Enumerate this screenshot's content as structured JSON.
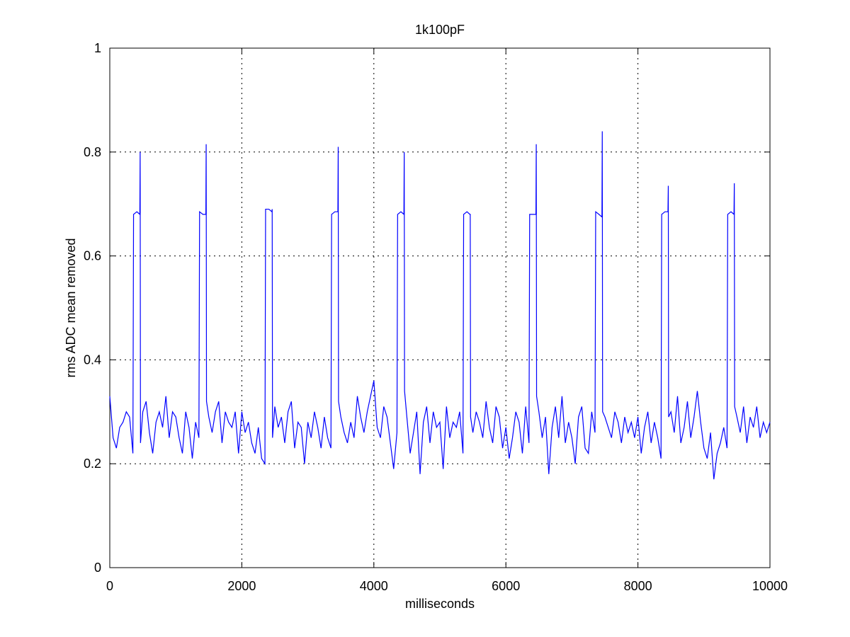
{
  "chart_data": {
    "type": "line",
    "title": "1k100pF",
    "x_label": "milliseconds",
    "y_label": "rms ADC mean removed",
    "xlim": [
      0,
      10000
    ],
    "ylim": [
      0,
      1
    ],
    "xticks": [
      0,
      2000,
      4000,
      6000,
      8000,
      10000
    ],
    "yticks": [
      0,
      0.2,
      0.4,
      0.6,
      0.8,
      1
    ],
    "grid": true,
    "series": [
      {
        "color": "#0000ff",
        "x": [
          0,
          50,
          100,
          150,
          200,
          250,
          300,
          350,
          360,
          410,
          455,
          460,
          465,
          500,
          550,
          600,
          650,
          700,
          750,
          800,
          850,
          900,
          950,
          1000,
          1050,
          1100,
          1150,
          1200,
          1250,
          1300,
          1350,
          1360,
          1410,
          1455,
          1460,
          1465,
          1500,
          1550,
          1600,
          1650,
          1700,
          1750,
          1800,
          1850,
          1900,
          1950,
          2000,
          2050,
          2100,
          2150,
          2200,
          2250,
          2300,
          2350,
          2360,
          2410,
          2455,
          2460,
          2465,
          2500,
          2550,
          2600,
          2650,
          2700,
          2750,
          2800,
          2850,
          2900,
          2950,
          3000,
          3050,
          3100,
          3150,
          3200,
          3250,
          3300,
          3350,
          3360,
          3410,
          3455,
          3460,
          3465,
          3500,
          3550,
          3600,
          3650,
          3700,
          3750,
          3800,
          3850,
          3900,
          3950,
          4000,
          4050,
          4100,
          4150,
          4200,
          4250,
          4300,
          4350,
          4360,
          4410,
          4455,
          4460,
          4465,
          4500,
          4550,
          4600,
          4650,
          4700,
          4750,
          4800,
          4850,
          4900,
          4950,
          5000,
          5050,
          5100,
          5150,
          5200,
          5250,
          5300,
          5350,
          5360,
          5410,
          5455,
          5460,
          5465,
          5500,
          5550,
          5600,
          5650,
          5700,
          5750,
          5800,
          5850,
          5900,
          5950,
          6000,
          6050,
          6100,
          6150,
          6200,
          6250,
          6300,
          6350,
          6360,
          6410,
          6455,
          6460,
          6465,
          6500,
          6550,
          6600,
          6650,
          6700,
          6750,
          6800,
          6850,
          6900,
          6950,
          7000,
          7050,
          7100,
          7150,
          7200,
          7250,
          7300,
          7350,
          7360,
          7410,
          7455,
          7460,
          7465,
          7500,
          7550,
          7600,
          7650,
          7700,
          7750,
          7800,
          7850,
          7900,
          7950,
          8000,
          8050,
          8100,
          8150,
          8200,
          8250,
          8300,
          8350,
          8360,
          8410,
          8455,
          8460,
          8465,
          8500,
          8550,
          8600,
          8650,
          8700,
          8750,
          8800,
          8850,
          8900,
          8950,
          9000,
          9050,
          9100,
          9150,
          9200,
          9250,
          9300,
          9350,
          9360,
          9410,
          9455,
          9460,
          9465,
          9500,
          9550,
          9600,
          9650,
          9700,
          9750,
          9800,
          9850,
          9900,
          9950,
          10000
        ],
        "values": [
          0.33,
          0.25,
          0.23,
          0.27,
          0.28,
          0.3,
          0.29,
          0.22,
          0.68,
          0.685,
          0.68,
          0.8,
          0.24,
          0.3,
          0.32,
          0.26,
          0.22,
          0.28,
          0.3,
          0.27,
          0.33,
          0.25,
          0.3,
          0.29,
          0.25,
          0.22,
          0.3,
          0.27,
          0.21,
          0.28,
          0.25,
          0.685,
          0.68,
          0.68,
          0.815,
          0.32,
          0.29,
          0.26,
          0.3,
          0.32,
          0.24,
          0.3,
          0.28,
          0.27,
          0.3,
          0.22,
          0.3,
          0.26,
          0.28,
          0.24,
          0.22,
          0.27,
          0.21,
          0.2,
          0.69,
          0.69,
          0.685,
          0.69,
          0.25,
          0.31,
          0.27,
          0.29,
          0.24,
          0.3,
          0.32,
          0.23,
          0.28,
          0.27,
          0.2,
          0.28,
          0.25,
          0.3,
          0.27,
          0.23,
          0.29,
          0.25,
          0.23,
          0.68,
          0.685,
          0.685,
          0.81,
          0.32,
          0.29,
          0.26,
          0.24,
          0.28,
          0.25,
          0.33,
          0.29,
          0.26,
          0.3,
          0.33,
          0.36,
          0.27,
          0.25,
          0.31,
          0.29,
          0.24,
          0.19,
          0.26,
          0.68,
          0.685,
          0.68,
          0.8,
          0.34,
          0.29,
          0.22,
          0.26,
          0.3,
          0.18,
          0.28,
          0.31,
          0.24,
          0.3,
          0.27,
          0.28,
          0.19,
          0.31,
          0.25,
          0.28,
          0.27,
          0.3,
          0.22,
          0.68,
          0.685,
          0.68,
          0.68,
          0.29,
          0.26,
          0.3,
          0.28,
          0.25,
          0.32,
          0.27,
          0.24,
          0.31,
          0.29,
          0.23,
          0.27,
          0.21,
          0.25,
          0.3,
          0.28,
          0.22,
          0.31,
          0.24,
          0.68,
          0.68,
          0.68,
          0.815,
          0.33,
          0.3,
          0.25,
          0.29,
          0.18,
          0.27,
          0.31,
          0.25,
          0.33,
          0.24,
          0.28,
          0.25,
          0.2,
          0.29,
          0.31,
          0.23,
          0.22,
          0.3,
          0.26,
          0.685,
          0.68,
          0.675,
          0.84,
          0.3,
          0.29,
          0.27,
          0.25,
          0.3,
          0.28,
          0.24,
          0.29,
          0.26,
          0.28,
          0.25,
          0.29,
          0.22,
          0.27,
          0.3,
          0.24,
          0.28,
          0.25,
          0.21,
          0.68,
          0.685,
          0.685,
          0.735,
          0.29,
          0.3,
          0.26,
          0.33,
          0.24,
          0.27,
          0.32,
          0.25,
          0.29,
          0.34,
          0.28,
          0.23,
          0.21,
          0.26,
          0.17,
          0.22,
          0.24,
          0.27,
          0.23,
          0.68,
          0.685,
          0.68,
          0.74,
          0.31,
          0.29,
          0.26,
          0.31,
          0.24,
          0.29,
          0.27,
          0.31,
          0.25,
          0.28,
          0.26,
          0.28
        ]
      }
    ]
  }
}
